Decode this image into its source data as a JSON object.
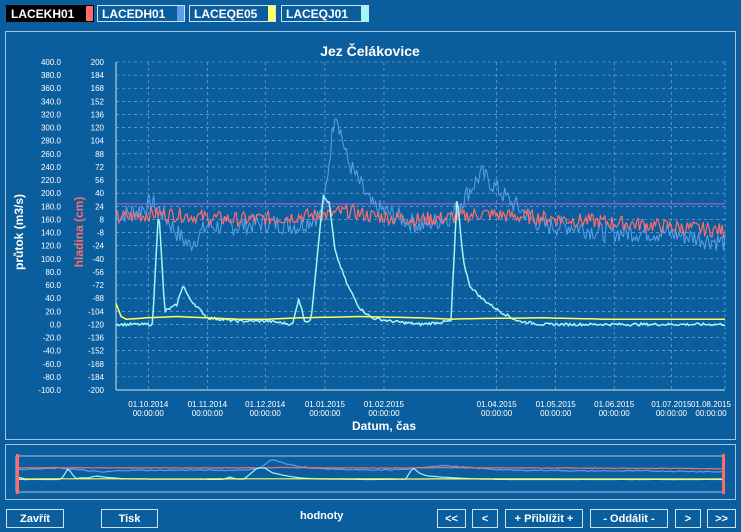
{
  "tabs": [
    {
      "label": "LACEKH01",
      "color": "#ff6b6b",
      "active": true
    },
    {
      "label": "LACEDH01",
      "color": "#5aa0e8",
      "active": false
    },
    {
      "label": "LACEQE05",
      "color": "#ffff66",
      "active": false
    },
    {
      "label": "LACEQJ01",
      "color": "#a6f4f4",
      "active": false
    }
  ],
  "colors": {
    "background": "#0b5e9e",
    "red_series": "#ff6b6b",
    "blue_series": "#5aa0e8",
    "yellow_series": "#ffff66",
    "cyan_series": "#a6f4f4",
    "grid": "#8fb3d4"
  },
  "chart_data": {
    "type": "line",
    "title": "Jez Čelákovice",
    "xlabel": "Datum, čas",
    "ylabel_left": "průtok (m3/s)",
    "ylabel_right": "hladina (cm)",
    "y_left_ticks": [
      "400.0",
      "380.0",
      "360.0",
      "340.0",
      "320.0",
      "300.0",
      "280.0",
      "260.0",
      "240.0",
      "220.0",
      "200.0",
      "180.0",
      "160.0",
      "140.0",
      "120.0",
      "100.0",
      "80.0",
      "60.0",
      "40.0",
      "20.0",
      "0.0",
      "-20.0",
      "-40.0",
      "-60.0",
      "-80.0",
      "-100.0"
    ],
    "y_left_lim": [
      -100,
      400
    ],
    "y_right_ticks": [
      "200",
      "184",
      "168",
      "152",
      "136",
      "120",
      "104",
      "88",
      "72",
      "56",
      "40",
      "24",
      "8",
      "-8",
      "-24",
      "-40",
      "-56",
      "-72",
      "-88",
      "-104",
      "-120",
      "-136",
      "-152",
      "-168",
      "-184",
      "-200"
    ],
    "y_right_lim": [
      -200,
      200
    ],
    "x_ticks": [
      {
        "date": "01.10.2014",
        "time": "00:00:00"
      },
      {
        "date": "01.11.2014",
        "time": "00:00:00"
      },
      {
        "date": "01.12.2014",
        "time": "00:00:00"
      },
      {
        "date": "01.01.2015",
        "time": "00:00:00"
      },
      {
        "date": "01.02.2015",
        "time": "00:00:00"
      },
      {
        "date": "01.04.2015",
        "time": "00:00:00"
      },
      {
        "date": "01.05.2015",
        "time": "00:00:00"
      },
      {
        "date": "01.06.2015",
        "time": "00:00:00"
      },
      {
        "date": "01.07.2015",
        "time": "00:00:00"
      },
      {
        "date": "01.08.2015",
        "time": "00:00:00"
      }
    ],
    "grid": true,
    "reference_line_right": 27,
    "series": [
      {
        "id": "LACEKH01",
        "color": "#ff6b6b",
        "axis": "right",
        "x": [
          0,
          0.03,
          0.06,
          0.1,
          0.15,
          0.2,
          0.25,
          0.3,
          0.35,
          0.38,
          0.42,
          0.5,
          0.55,
          0.6,
          0.65,
          0.7,
          0.8,
          0.9,
          1.0
        ],
        "y": [
          10,
          12,
          15,
          14,
          10,
          8,
          9,
          12,
          14,
          18,
          12,
          8,
          10,
          15,
          12,
          10,
          5,
          0,
          -6
        ]
      },
      {
        "id": "LACEDH01",
        "color": "#5aa0e8",
        "axis": "left",
        "x": [
          0,
          0.04,
          0.06,
          0.08,
          0.1,
          0.12,
          0.15,
          0.2,
          0.25,
          0.3,
          0.34,
          0.36,
          0.38,
          0.42,
          0.5,
          0.55,
          0.6,
          0.65,
          0.7,
          0.75,
          0.8,
          0.9,
          1.0
        ],
        "y": [
          165,
          175,
          185,
          165,
          140,
          120,
          150,
          150,
          155,
          150,
          170,
          330,
          250,
          180,
          150,
          165,
          230,
          185,
          150,
          150,
          140,
          140,
          125
        ]
      },
      {
        "id": "LACEQE05",
        "color": "#ffff66",
        "axis": "left",
        "x": [
          0,
          0.01,
          0.02,
          0.05,
          0.1,
          0.15,
          0.2,
          0.25,
          0.3,
          0.4,
          0.5,
          0.55,
          0.6,
          0.7,
          0.8,
          1.0
        ],
        "y": [
          32,
          8,
          8,
          10,
          12,
          10,
          8,
          8,
          10,
          12,
          10,
          8,
          9,
          10,
          8,
          8
        ]
      },
      {
        "id": "LACEQJ01",
        "color": "#a6f4f4",
        "axis": "left",
        "x": [
          0,
          0.04,
          0.06,
          0.07,
          0.08,
          0.1,
          0.11,
          0.12,
          0.15,
          0.2,
          0.25,
          0.29,
          0.3,
          0.31,
          0.32,
          0.34,
          0.35,
          0.36,
          0.38,
          0.4,
          0.42,
          0.45,
          0.5,
          0.55,
          0.56,
          0.57,
          0.58,
          0.6,
          0.63,
          0.66,
          0.7,
          0.8,
          1.0
        ],
        "y": [
          0,
          0,
          0,
          180,
          20,
          30,
          60,
          40,
          10,
          5,
          5,
          0,
          40,
          5,
          5,
          195,
          185,
          110,
          60,
          25,
          10,
          5,
          0,
          5,
          195,
          100,
          60,
          40,
          20,
          5,
          0,
          0,
          0
        ]
      }
    ]
  },
  "buttons": {
    "close": "Zavřít",
    "print": "Tisk",
    "first": "<<",
    "prev": "<",
    "zoom_in": "+ Přiblížit +",
    "zoom_out": "- Oddálit -",
    "next": ">",
    "last": ">>"
  },
  "status": "hodnoty"
}
